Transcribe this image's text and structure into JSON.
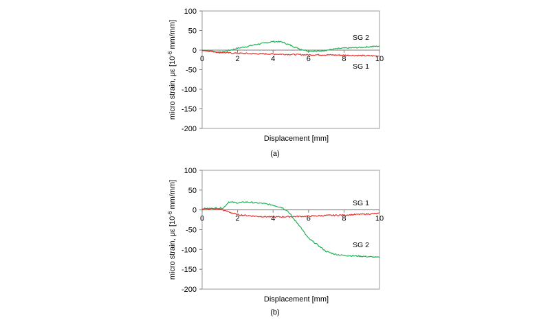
{
  "chart_data": [
    {
      "type": "line",
      "caption": "(a)",
      "xlabel": "Displacement [mm]",
      "ylabel": "micro strain,  με [10-6 mm/mm]",
      "ylabel_parts": [
        "micro strain,  με [10",
        "-6",
        " mm/mm]"
      ],
      "xlim": [
        0,
        10
      ],
      "ylim": [
        -200,
        100
      ],
      "xticks": [
        0,
        2,
        4,
        6,
        8,
        10
      ],
      "yticks": [
        100,
        50,
        0,
        -50,
        -100,
        -150,
        -200
      ],
      "grid": false,
      "series": [
        {
          "name": "SG 1",
          "color": "#e8302a",
          "x": [
            0,
            0.5,
            1,
            1.5,
            2,
            3,
            4,
            5,
            6,
            7,
            8,
            9,
            10
          ],
          "y": [
            0,
            -3,
            -6,
            -7,
            -8,
            -9,
            -10,
            -11,
            -12,
            -12,
            -13,
            -14,
            -15
          ]
        },
        {
          "name": "SG 2",
          "color": "#22b055",
          "x": [
            0,
            0.5,
            1,
            1.5,
            2,
            2.5,
            3,
            3.5,
            4,
            4.5,
            5,
            5.5,
            6,
            6.5,
            7,
            7.5,
            8,
            8.5,
            9,
            9.5,
            10
          ],
          "y": [
            0,
            -2,
            -6,
            -1,
            5,
            9,
            14,
            18,
            22,
            21,
            12,
            3,
            -2,
            -3,
            0,
            3,
            5,
            6,
            7,
            9,
            10
          ]
        }
      ]
    },
    {
      "type": "line",
      "caption": "(b)",
      "xlabel": "Displacement [mm]",
      "ylabel": "micro strain,  με [10-6 mm/mm]",
      "ylabel_parts": [
        "micro strain,  με [10",
        "-6",
        " mm/mm]"
      ],
      "xlim": [
        0,
        10
      ],
      "ylim": [
        -200,
        100
      ],
      "xticks": [
        0,
        2,
        4,
        6,
        8,
        10
      ],
      "yticks": [
        100,
        50,
        0,
        -50,
        -100,
        -150,
        -200
      ],
      "grid": false,
      "series": [
        {
          "name": "SG 1",
          "color": "#e8302a",
          "x": [
            0,
            0.5,
            1,
            1.5,
            2,
            3,
            4,
            5,
            6,
            7,
            8,
            9,
            10
          ],
          "y": [
            3,
            3,
            2,
            -5,
            -12,
            -16,
            -18,
            -17,
            -16,
            -14,
            -13,
            -11,
            -9
          ]
        },
        {
          "name": "SG 2",
          "color": "#22b055",
          "x": [
            0,
            1.2,
            1.5,
            2,
            2.5,
            3,
            3.5,
            4,
            4.5,
            4.8,
            5,
            5.2,
            5.5,
            5.8,
            6,
            6.5,
            7,
            7.5,
            8,
            9,
            10
          ],
          "y": [
            3,
            5,
            20,
            18,
            20,
            18,
            16,
            12,
            6,
            -2,
            -12,
            -25,
            -40,
            -60,
            -72,
            -88,
            -105,
            -112,
            -115,
            -117,
            -120
          ]
        }
      ]
    }
  ]
}
